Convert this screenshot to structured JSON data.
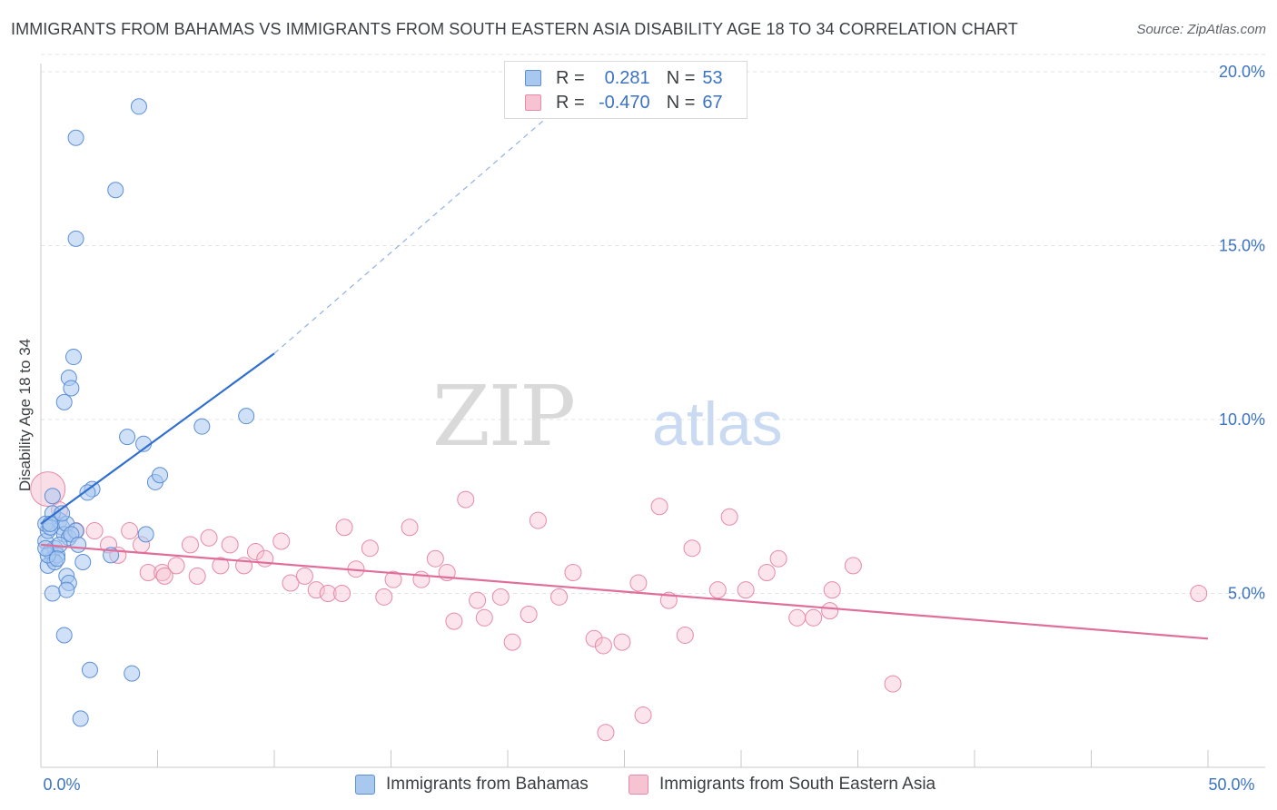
{
  "title": "IMMIGRANTS FROM BAHAMAS VS IMMIGRANTS FROM SOUTH EASTERN ASIA DISABILITY AGE 18 TO 34 CORRELATION CHART",
  "source": "Source: ZipAtlas.com",
  "watermark": {
    "zip": "ZIP",
    "atlas": "atlas"
  },
  "legend": {
    "r_label": "R =",
    "n_label": "N =",
    "rows": [
      {
        "r": "0.281",
        "n": "53"
      },
      {
        "r": "-0.470",
        "n": "67"
      }
    ]
  },
  "colors": {
    "blue_fill": "#a9c8f0",
    "blue_stroke": "#5b8fd6",
    "blue_line": "#2f6fd0",
    "pink_fill": "#f6c3d3",
    "pink_stroke": "#e68aa8",
    "pink_line": "#e06e9a",
    "tick_label": "#3b73c4",
    "grid": "#e3e3e3"
  },
  "chart_data": {
    "type": "scatter",
    "title": "IMMIGRANTS FROM BAHAMAS VS IMMIGRANTS FROM SOUTH EASTERN ASIA DISABILITY AGE 18 TO 34 CORRELATION CHART",
    "xlabel": "",
    "ylabel": "Disability Age 18 to 34",
    "xlim": [
      0,
      50
    ],
    "ylim": [
      0,
      20.5
    ],
    "x_tick_labels": [
      "0.0%",
      "50.0%"
    ],
    "y_ticks": [
      5,
      10,
      15,
      20
    ],
    "y_tick_labels": [
      "5.0%",
      "10.0%",
      "15.0%",
      "20.0%"
    ],
    "grid": true,
    "legend_position": "bottom",
    "series": [
      {
        "name": "Immigrants from Bahamas",
        "r": 0.281,
        "n": 53,
        "trend": {
          "x": [
            0.0,
            10.0
          ],
          "y": [
            7.0,
            11.9
          ],
          "extend_to_x": 23.6,
          "extend_to_y": 19.8
        },
        "points": [
          [
            0.2,
            6.5
          ],
          [
            0.3,
            6.8
          ],
          [
            0.2,
            7.0
          ],
          [
            0.4,
            6.2
          ],
          [
            0.5,
            6.0
          ],
          [
            0.3,
            5.8
          ],
          [
            0.6,
            6.3
          ],
          [
            0.7,
            6.1
          ],
          [
            0.8,
            7.1
          ],
          [
            0.9,
            6.9
          ],
          [
            1.0,
            6.7
          ],
          [
            1.1,
            7.0
          ],
          [
            1.2,
            6.6
          ],
          [
            0.5,
            7.3
          ],
          [
            0.4,
            6.9
          ],
          [
            0.8,
            6.4
          ],
          [
            0.6,
            5.9
          ],
          [
            0.3,
            6.1
          ],
          [
            0.5,
            7.8
          ],
          [
            1.5,
            6.8
          ],
          [
            1.8,
            5.9
          ],
          [
            1.1,
            5.5
          ],
          [
            1.2,
            5.3
          ],
          [
            0.5,
            5.0
          ],
          [
            1.1,
            5.1
          ],
          [
            1.0,
            3.8
          ],
          [
            2.2,
            8.0
          ],
          [
            3.7,
            9.5
          ],
          [
            4.4,
            9.3
          ],
          [
            4.9,
            8.2
          ],
          [
            5.1,
            8.4
          ],
          [
            6.9,
            9.8
          ],
          [
            8.8,
            10.1
          ],
          [
            1.0,
            10.5
          ],
          [
            1.2,
            11.2
          ],
          [
            1.3,
            10.9
          ],
          [
            1.4,
            11.8
          ],
          [
            1.5,
            18.1
          ],
          [
            1.5,
            15.2
          ],
          [
            3.2,
            16.6
          ],
          [
            4.2,
            19.0
          ],
          [
            4.5,
            6.7
          ],
          [
            3.0,
            6.1
          ],
          [
            2.1,
            2.8
          ],
          [
            3.9,
            2.7
          ],
          [
            1.7,
            1.4
          ],
          [
            0.9,
            7.3
          ],
          [
            1.3,
            6.7
          ],
          [
            0.7,
            6.0
          ],
          [
            0.2,
            6.3
          ],
          [
            0.4,
            7.0
          ],
          [
            1.6,
            6.4
          ],
          [
            2.0,
            7.9
          ]
        ]
      },
      {
        "name": "Immigrants from South Eastern Asia",
        "r": -0.47,
        "n": 67,
        "trend": {
          "x": [
            0.0,
            50.0
          ],
          "y": [
            6.4,
            3.7
          ]
        },
        "points": [
          [
            0.3,
            8.0
          ],
          [
            0.8,
            7.4
          ],
          [
            1.5,
            6.8
          ],
          [
            2.3,
            6.8
          ],
          [
            2.9,
            6.4
          ],
          [
            3.3,
            6.1
          ],
          [
            3.8,
            6.8
          ],
          [
            4.3,
            6.4
          ],
          [
            4.6,
            5.6
          ],
          [
            5.2,
            5.6
          ],
          [
            5.8,
            5.8
          ],
          [
            6.4,
            6.4
          ],
          [
            6.7,
            5.5
          ],
          [
            7.2,
            6.6
          ],
          [
            7.7,
            5.8
          ],
          [
            8.1,
            6.4
          ],
          [
            8.7,
            5.8
          ],
          [
            9.2,
            6.2
          ],
          [
            9.6,
            6.0
          ],
          [
            10.3,
            6.5
          ],
          [
            10.7,
            5.3
          ],
          [
            11.3,
            5.5
          ],
          [
            11.8,
            5.1
          ],
          [
            12.3,
            5.0
          ],
          [
            13.0,
            6.9
          ],
          [
            13.5,
            5.7
          ],
          [
            14.1,
            6.3
          ],
          [
            14.7,
            4.9
          ],
          [
            15.1,
            5.4
          ],
          [
            15.8,
            6.9
          ],
          [
            16.3,
            5.4
          ],
          [
            16.9,
            6.0
          ],
          [
            17.4,
            5.6
          ],
          [
            17.7,
            4.2
          ],
          [
            18.2,
            7.7
          ],
          [
            18.7,
            4.8
          ],
          [
            19.0,
            4.3
          ],
          [
            19.7,
            4.9
          ],
          [
            20.2,
            3.6
          ],
          [
            20.9,
            4.4
          ],
          [
            21.3,
            7.1
          ],
          [
            22.2,
            4.9
          ],
          [
            22.8,
            5.6
          ],
          [
            23.7,
            3.7
          ],
          [
            24.1,
            3.5
          ],
          [
            24.9,
            3.6
          ],
          [
            25.6,
            5.3
          ],
          [
            25.8,
            1.5
          ],
          [
            26.5,
            7.5
          ],
          [
            26.9,
            4.8
          ],
          [
            27.6,
            3.8
          ],
          [
            27.9,
            6.3
          ],
          [
            29.0,
            5.1
          ],
          [
            29.5,
            7.2
          ],
          [
            30.2,
            5.1
          ],
          [
            31.1,
            5.6
          ],
          [
            31.6,
            6.0
          ],
          [
            32.4,
            4.3
          ],
          [
            33.1,
            4.3
          ],
          [
            33.8,
            4.5
          ],
          [
            33.9,
            5.1
          ],
          [
            34.8,
            5.8
          ],
          [
            36.5,
            2.4
          ],
          [
            24.2,
            1.0
          ],
          [
            49.6,
            5.0
          ],
          [
            5.3,
            5.5
          ],
          [
            12.9,
            5.0
          ]
        ]
      }
    ]
  }
}
